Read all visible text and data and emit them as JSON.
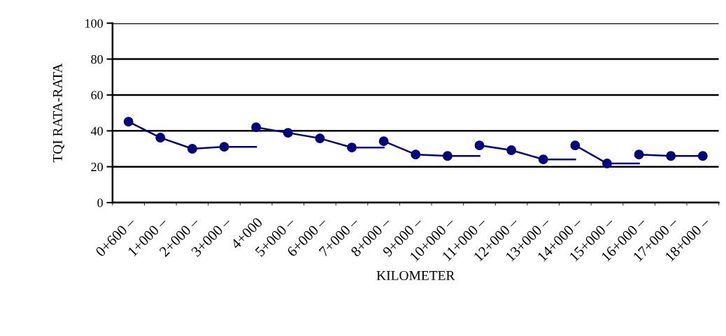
{
  "chart_data": {
    "type": "line",
    "xlabel": "KILOMETER",
    "ylabel": "TQI RATA-RATA",
    "categories": [
      "0+600 –",
      "1+000 –",
      "2+000 –",
      "3+000 –",
      "4+000",
      "5+000 –",
      "6+000 –",
      "7+000 –",
      "8+000 –",
      "9+000 –",
      "10+000 –",
      "11+000 –",
      "12+000 –",
      "13+000 –",
      "14+000 –",
      "15+000 –",
      "16+000 –",
      "17+000 –",
      "18+000 –"
    ],
    "series": [
      {
        "color": "#000080",
        "marker": "circle",
        "values": [
          45.1,
          36.2,
          30,
          31.1,
          null,
          null,
          null,
          null,
          null,
          null,
          null,
          null,
          null,
          null,
          null,
          null,
          null,
          null,
          null
        ]
      },
      {
        "color": "#000080",
        "marker": "none",
        "values": [
          null,
          null,
          null,
          31.1,
          31.1,
          null,
          null,
          null,
          null,
          null,
          null,
          null,
          null,
          null,
          null,
          null,
          null,
          null,
          null
        ]
      },
      {
        "color": "#000080",
        "marker": "circle",
        "values": [
          null,
          null,
          null,
          null,
          42,
          38.9,
          35.8,
          30.7,
          null,
          null,
          null,
          null,
          null,
          null,
          null,
          null,
          null,
          null,
          null
        ]
      },
      {
        "color": "#000080",
        "marker": "none",
        "values": [
          null,
          null,
          null,
          null,
          null,
          null,
          null,
          30.7,
          30.7,
          null,
          null,
          null,
          null,
          null,
          null,
          null,
          null,
          null,
          null
        ]
      },
      {
        "color": "#000080",
        "marker": "circle",
        "values": [
          null,
          null,
          null,
          null,
          null,
          null,
          null,
          null,
          34.2,
          26.8,
          26,
          null,
          null,
          null,
          null,
          null,
          null,
          null,
          null
        ]
      },
      {
        "color": "#000080",
        "marker": "none",
        "values": [
          null,
          null,
          null,
          null,
          null,
          null,
          null,
          null,
          null,
          null,
          26,
          26,
          null,
          null,
          null,
          null,
          null,
          null,
          null
        ]
      },
      {
        "color": "#000080",
        "marker": "circle",
        "values": [
          null,
          null,
          null,
          null,
          null,
          null,
          null,
          null,
          null,
          null,
          null,
          31.9,
          29.2,
          24.1,
          null,
          null,
          null,
          null,
          null
        ]
      },
      {
        "color": "#000080",
        "marker": "none",
        "values": [
          null,
          null,
          null,
          null,
          null,
          null,
          null,
          null,
          null,
          null,
          null,
          null,
          null,
          24.1,
          24.1,
          null,
          null,
          null,
          null
        ]
      },
      {
        "color": "#000080",
        "marker": "circle",
        "values": [
          null,
          null,
          null,
          null,
          null,
          null,
          null,
          null,
          null,
          null,
          null,
          null,
          null,
          null,
          31.9,
          21.8,
          null,
          null,
          null
        ]
      },
      {
        "color": "#000080",
        "values": [
          null,
          null,
          null,
          null,
          null,
          null,
          null,
          null,
          null,
          null,
          null,
          null,
          null,
          null,
          null,
          21.8,
          21.8,
          null,
          null
        ]
      },
      {
        "color": "#000080",
        "marker": "circle",
        "values": [
          null,
          null,
          null,
          null,
          null,
          null,
          null,
          null,
          null,
          null,
          null,
          null,
          null,
          null,
          null,
          null,
          26.8,
          26,
          26
        ]
      }
    ],
    "ylim": [
      0,
      100
    ],
    "yticks": [
      0,
      20,
      40,
      60,
      80,
      100
    ],
    "grid": "y",
    "legend": false
  }
}
